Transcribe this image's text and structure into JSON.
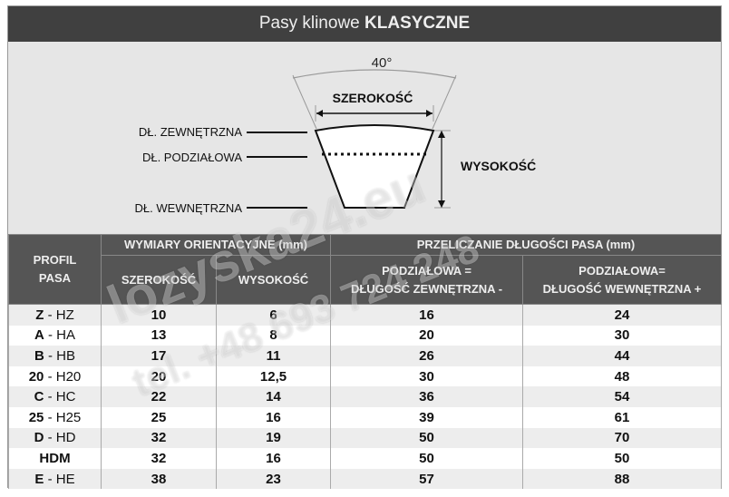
{
  "title": {
    "normal": "Pasy klinowe",
    "bold": "KLASYCZNE"
  },
  "diagram": {
    "angle": "40°",
    "width_label": "SZEROKOŚĆ",
    "height_label": "WYSOKOŚĆ",
    "outer_label": "DŁ. ZEWNĘTRZNA",
    "pitch_label": "DŁ. PODZIAŁOWA",
    "inner_label": "DŁ. WEWNĘTRZNA"
  },
  "table": {
    "headers": {
      "profile_line1": "PROFIL",
      "profile_line2": "PASA",
      "group_dims": "WYMIARY ORIENTACYJNE (mm)",
      "group_length": "PRZELICZANIE DŁUGOŚCI PASA (mm)",
      "width": "SZEROKOŚĆ",
      "height": "WYSOKOŚĆ",
      "outer_line1": "PODZIAŁOWA =",
      "outer_line2": "DŁUGOŚĆ ZEWNĘTRZNA -",
      "inner_line1": "PODZIAŁOWA=",
      "inner_line2": "DŁUGOŚĆ WEWNĘTRZNA +"
    },
    "rows": [
      {
        "p1": "Z",
        "p2": " - HZ",
        "w": "10",
        "h": "6",
        "outer": "16",
        "inner": "24"
      },
      {
        "p1": "A",
        "p2": " - HA",
        "w": "13",
        "h": "8",
        "outer": "20",
        "inner": "30"
      },
      {
        "p1": "B",
        "p2": " - HB",
        "w": "17",
        "h": "11",
        "outer": "26",
        "inner": "44"
      },
      {
        "p1": "20",
        "p2": " - H20",
        "w": "20",
        "h": "12,5",
        "outer": "30",
        "inner": "48"
      },
      {
        "p1": "C",
        "p2": " - HC",
        "w": "22",
        "h": "14",
        "outer": "36",
        "inner": "54"
      },
      {
        "p1": "25",
        "p2": " - H25",
        "w": "25",
        "h": "16",
        "outer": "39",
        "inner": "61"
      },
      {
        "p1": "D",
        "p2": " - HD",
        "w": "32",
        "h": "19",
        "outer": "50",
        "inner": "70"
      },
      {
        "p1": "HDM",
        "p2": "",
        "w": "32",
        "h": "16",
        "outer": "50",
        "inner": "50"
      },
      {
        "p1": "E",
        "p2": " - HE",
        "w": "38",
        "h": "23",
        "outer": "57",
        "inner": "88"
      }
    ]
  },
  "watermark": {
    "line1": "lozyska24.eu",
    "line2": "tel. +48 693 724 248"
  },
  "colors": {
    "header_bg": "#404040",
    "table_header_bg": "#555555",
    "diagram_bg": "#e6e6e6"
  }
}
